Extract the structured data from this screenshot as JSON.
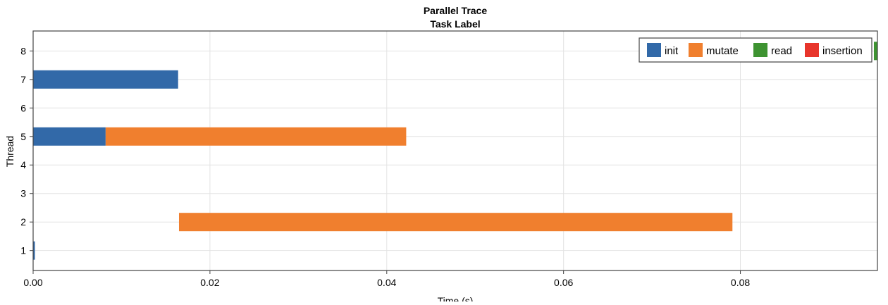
{
  "chart_data": {
    "type": "bar",
    "orientation": "horizontal-timeline",
    "title": "Parallel Trace",
    "subtitle": "Task Label",
    "xlabel": "Time (s)",
    "ylabel": "Thread",
    "xlim": [
      0.0,
      0.0955
    ],
    "ylim": [
      0.3,
      8.7
    ],
    "x_ticks": [
      "0.00",
      "0.02",
      "0.04",
      "0.06",
      "0.08"
    ],
    "x_tick_values": [
      0.0,
      0.02,
      0.04,
      0.06,
      0.08
    ],
    "y_ticks": [
      "1",
      "2",
      "3",
      "4",
      "5",
      "6",
      "7",
      "8"
    ],
    "y_tick_values": [
      1,
      2,
      3,
      4,
      5,
      6,
      7,
      8
    ],
    "grid": true,
    "legend_position": "top-right",
    "legend": [
      {
        "label": "init",
        "color": "#3269a8"
      },
      {
        "label": "mutate",
        "color": "#f07f2e"
      },
      {
        "label": "read",
        "color": "#3e9331"
      },
      {
        "label": "insertion",
        "color": "#e8352b"
      }
    ],
    "series": [
      {
        "name": "init",
        "color": "#3269a8",
        "segments": [
          {
            "thread": 7,
            "start": 0.0,
            "end": 0.0164
          },
          {
            "thread": 5,
            "start": 0.0,
            "end": 0.0082
          },
          {
            "thread": 1,
            "start": 0.0,
            "end": 0.0002
          }
        ]
      },
      {
        "name": "mutate",
        "color": "#f07f2e",
        "segments": [
          {
            "thread": 5,
            "start": 0.0082,
            "end": 0.0422
          },
          {
            "thread": 2,
            "start": 0.0165,
            "end": 0.0791
          }
        ]
      },
      {
        "name": "read",
        "color": "#3e9331",
        "segments": [
          {
            "thread": 8,
            "start": 0.0951,
            "end": 0.0955
          }
        ]
      },
      {
        "name": "insertion",
        "color": "#e8352b",
        "segments": []
      }
    ]
  }
}
